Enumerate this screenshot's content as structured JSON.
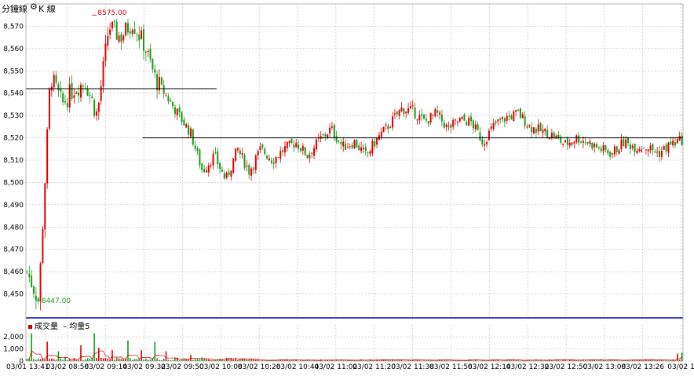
{
  "header": {
    "label": "分鐘線",
    "chart_type_label": "K 線",
    "gear_icon": "gear-icon"
  },
  "volume_legend": {
    "volume_label": "成交量",
    "ma_label": "均量5",
    "volume_color": "#cc0000",
    "ma_color": "#cc0000"
  },
  "colors": {
    "up": "#e00000",
    "down": "#1a9a1a",
    "grid": "#bdbdbd",
    "divider": "#0000cc",
    "support_line": "#000000"
  },
  "chart_data": [
    {
      "type": "candlestick",
      "ylim": [
        8440,
        8580
      ],
      "y_ticks": [
        "8,450",
        "8,460",
        "8,470",
        "8,480",
        "8,490",
        "8,500",
        "8,510",
        "8,520",
        "8,530",
        "8,540",
        "8,550",
        "8,560",
        "8,570"
      ],
      "x_ticks": [
        "03/01 13:41",
        "03/02 08:56",
        "03/02 09:14",
        "03/02 09:32",
        "03/02 09:50",
        "03/02 10:08",
        "03/02 10:26",
        "03/02 10:44",
        "03/02 11:02",
        "03/02 11:20",
        "03/02 11:38",
        "03/02 11:56",
        "03/02 12:14",
        "03/02 12:32",
        "03/02 12:50",
        "03/02 13:08",
        "03/02 13:26",
        "03/02 1"
      ],
      "annotations": [
        {
          "text": "8575.00",
          "value": 8575,
          "kind": "high"
        },
        {
          "text": "8447.00",
          "value": 8447,
          "kind": "low"
        }
      ],
      "reference_lines": [
        {
          "value": 8542,
          "from_index": 0,
          "to_index": 84
        },
        {
          "value": 8520,
          "from_index": 52,
          "to_index": 292
        }
      ],
      "price_path": [
        8460,
        8447,
        8548,
        8535,
        8542,
        8545,
        8530,
        8570,
        8565,
        8572,
        8562,
        8546,
        8538,
        8530,
        8522,
        8505,
        8512,
        8501,
        8515,
        8505,
        8515,
        8510,
        8515,
        8518,
        8512,
        8519,
        8524,
        8516,
        8518,
        8512,
        8520,
        8526,
        8533,
        8532,
        8527,
        8531,
        8524,
        8528,
        8527,
        8518,
        8526,
        8529,
        8531,
        8525,
        8523,
        8521,
        8517,
        8520,
        8518,
        8515,
        8513,
        8518,
        8516,
        8516,
        8513,
        8517,
        8519
      ],
      "volume": {
        "ylim": [
          0,
          2600
        ],
        "y_ticks": [
          "0",
          "1,000",
          "2,000"
        ],
        "spikes": [
          {
            "index": 2,
            "value": 2300
          },
          {
            "index": 9,
            "value": 1600
          },
          {
            "index": 14,
            "value": 800
          },
          {
            "index": 24,
            "value": 1300
          },
          {
            "index": 30,
            "value": 2300
          },
          {
            "index": 32,
            "value": 1100
          },
          {
            "index": 38,
            "value": 900
          },
          {
            "index": 45,
            "value": 1700
          },
          {
            "index": 51,
            "value": 900
          },
          {
            "index": 57,
            "value": 1600
          },
          {
            "index": 62,
            "value": 800
          },
          {
            "index": 73,
            "value": 500
          },
          {
            "index": 78,
            "value": 300
          },
          {
            "index": 100,
            "value": 200
          },
          {
            "index": 290,
            "value": 600
          },
          {
            "index": 292,
            "value": 700
          }
        ]
      }
    }
  ]
}
